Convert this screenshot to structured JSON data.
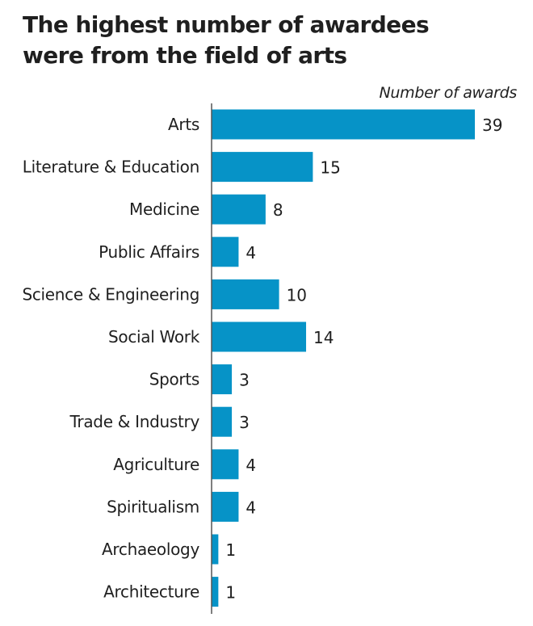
{
  "chart_data": {
    "type": "bar",
    "orientation": "horizontal",
    "title": "The highest number of awardees were from the field of arts",
    "title_lines": [
      "The highest number of awardees",
      "were from the field of arts"
    ],
    "xlabel": "Number of awards",
    "ylabel": "",
    "categories": [
      "Arts",
      "Literature & Education",
      "Medicine",
      "Public Affairs",
      "Science & Engineering",
      "Social Work",
      "Sports",
      "Trade & Industry",
      "Agriculture",
      "Spiritualism",
      "Archaeology",
      "Architecture"
    ],
    "values": [
      39,
      15,
      8,
      4,
      10,
      14,
      3,
      3,
      4,
      4,
      1,
      1
    ],
    "xlim": [
      0,
      39
    ],
    "grid": false,
    "legend": "none",
    "bar_color": "#0693c7",
    "axis_color": "#555555"
  }
}
